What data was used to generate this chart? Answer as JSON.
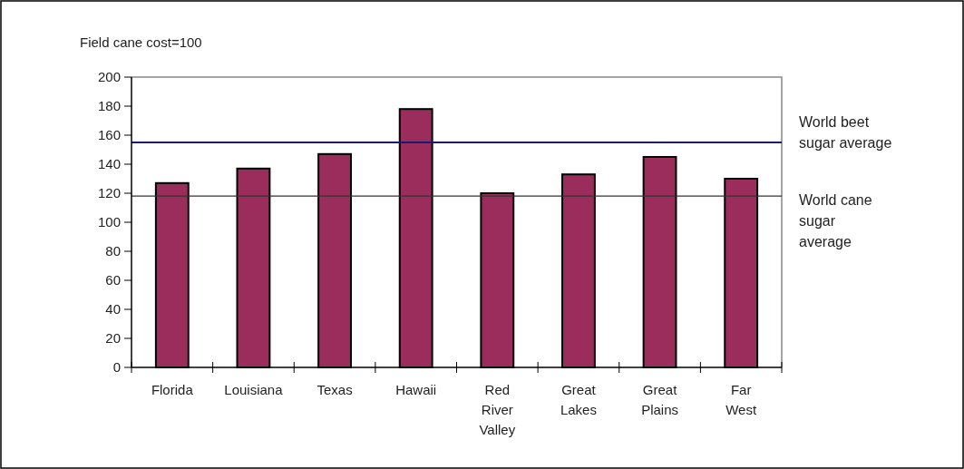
{
  "chart_data": {
    "type": "bar",
    "title": "Field cane cost=100",
    "categories": [
      "Florida",
      "Louisiana",
      "Texas",
      "Hawaii",
      "Red River Valley",
      "Great Lakes",
      "Great Plains",
      "Far West"
    ],
    "values": [
      127,
      137,
      147,
      178,
      120,
      133,
      145,
      130
    ],
    "color": "#9b2d5c",
    "ylim": [
      0,
      200
    ],
    "yticks": [
      0,
      20,
      40,
      60,
      80,
      100,
      120,
      140,
      160,
      180,
      200
    ],
    "grid": false,
    "ref_lines": [
      {
        "axis": "y",
        "value": 155,
        "label": "World beet sugar average",
        "color": "#1a1a6e"
      },
      {
        "axis": "y",
        "value": 118,
        "label": "World cane sugar average",
        "color": "#333333"
      }
    ]
  }
}
